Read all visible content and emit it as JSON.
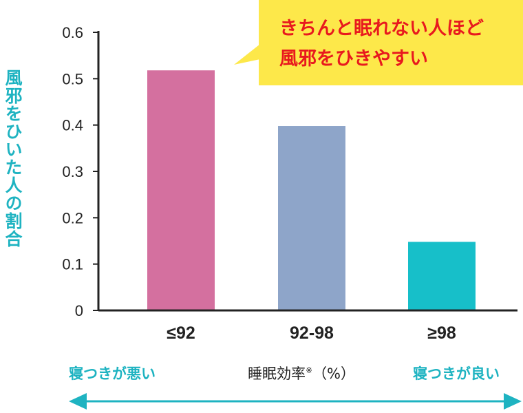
{
  "chart_data": {
    "type": "bar",
    "categories": [
      "≤92",
      "92-98",
      "≥98"
    ],
    "values": [
      0.518,
      0.398,
      0.148
    ],
    "bar_colors": [
      "#d4709f",
      "#8ea5c9",
      "#17bfc9"
    ],
    "ylabel": "風邪をひいた人の割合",
    "ylim": [
      0,
      0.6
    ],
    "yticks": [
      "0",
      "0.1",
      "0.2",
      "0.3",
      "0.4",
      "0.5",
      "0.6"
    ],
    "grid": false,
    "annotation": {
      "line1": "きちんと眠れない人ほど",
      "line2": "風邪をひきやすい",
      "background": "#fde84a",
      "text_color": "#e8191e"
    },
    "x_captions": {
      "left": "寝つきが悪い",
      "center": "睡眠効率",
      "center_note": "※",
      "center_unit": "（%）",
      "right": "寝つきが良い"
    },
    "accent_color": "#1eb3c1"
  }
}
